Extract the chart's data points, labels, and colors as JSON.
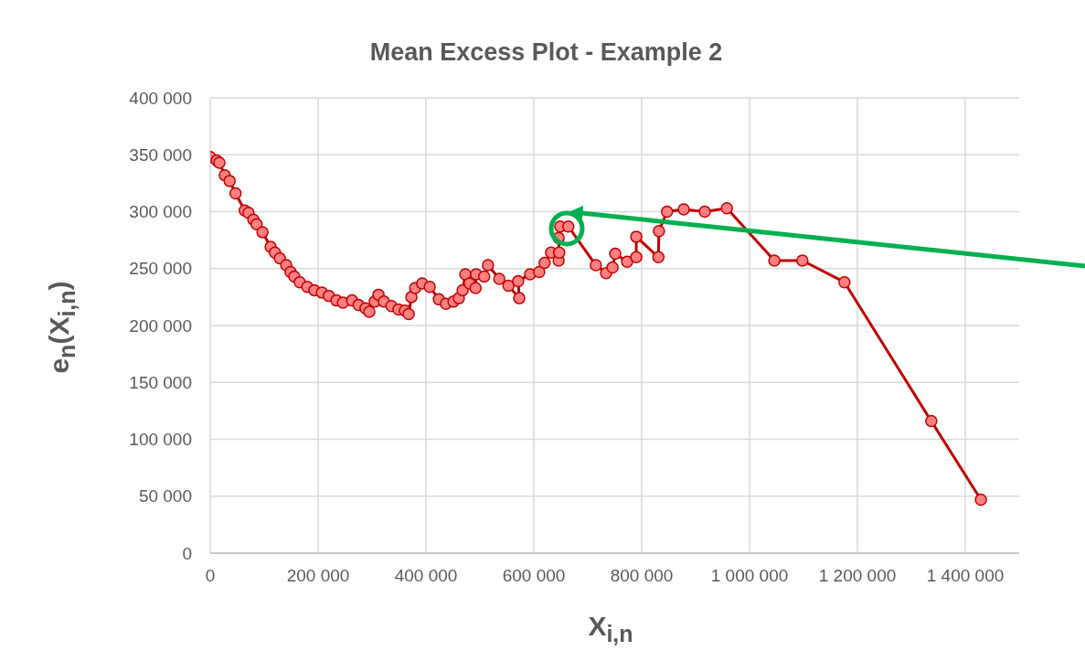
{
  "chart_data": {
    "type": "line",
    "title": "Mean Excess Plot - Example 2",
    "xlabel": "X$_{i,n}$",
    "ylabel": "e$_{n}$(X$_{i,n}$)",
    "x": [
      0,
      12000,
      17000,
      27000,
      36000,
      47000,
      64000,
      71000,
      80000,
      86000,
      97000,
      112000,
      120000,
      129000,
      141000,
      149000,
      156000,
      166000,
      180000,
      193000,
      207000,
      220000,
      234000,
      246000,
      263000,
      275000,
      288000,
      295000,
      305000,
      312000,
      322000,
      336000,
      349000,
      361000,
      368000,
      373000,
      380000,
      393000,
      407000,
      424000,
      437000,
      451000,
      461000,
      468000,
      473000,
      481000,
      492000,
      493000,
      508000,
      515000,
      536000,
      553000,
      573000,
      571000,
      593000,
      610000,
      620000,
      632000,
      646000,
      647000,
      646000,
      649000,
      664000,
      715000,
      734000,
      746000,
      751000,
      773000,
      790000,
      790000,
      831000,
      832000,
      847000,
      878000,
      917000,
      958000,
      1046000,
      1098000,
      1176000,
      1337000,
      1429000
    ],
    "series": [
      {
        "color": "#c00000",
        "values": [
          348000,
          345000,
          343000,
          332000,
          327000,
          316000,
          301000,
          299000,
          293000,
          289000,
          282000,
          269000,
          264000,
          259000,
          253000,
          247000,
          243000,
          238000,
          234000,
          231000,
          229000,
          226000,
          222000,
          220000,
          222000,
          218000,
          215000,
          212000,
          221000,
          227000,
          221000,
          217000,
          214000,
          213000,
          210000,
          225000,
          233000,
          237000,
          234000,
          223000,
          219000,
          221000,
          224000,
          231000,
          245000,
          237000,
          233000,
          245000,
          243000,
          253000,
          241000,
          235000,
          224000,
          239000,
          245000,
          247000,
          255000,
          264000,
          257000,
          264000,
          277000,
          287000,
          287000,
          253000,
          246000,
          251000,
          263000,
          256000,
          260000,
          278000,
          260000,
          283000,
          300000,
          302000,
          300000,
          303000,
          257000,
          257000,
          238000,
          116000,
          47000
        ]
      }
    ],
    "xlim": [
      0,
      1500000
    ],
    "ylim": [
      0,
      400000
    ],
    "xticks": [
      0,
      {
        "value": 200000,
        "label": "200 000"
      },
      {
        "value": 400000,
        "label": "400 000"
      },
      {
        "value": 600000,
        "label": "600 000"
      },
      {
        "value": 800000,
        "label": "800 000"
      },
      {
        "value": 1000000,
        "label": "1 000 000"
      },
      {
        "value": 1200000,
        "label": "1 200 000"
      },
      {
        "value": 1400000,
        "label": "1 400 000"
      }
    ],
    "yticks": [
      0,
      {
        "value": 50000,
        "label": "50 000"
      },
      {
        "value": 100000,
        "label": "100 000"
      },
      {
        "value": 150000,
        "label": "150 000"
      },
      {
        "value": 200000,
        "label": "200 000"
      },
      {
        "value": 250000,
        "label": "250 000"
      },
      {
        "value": 300000,
        "label": "300 000"
      },
      {
        "value": 350000,
        "label": "350 000"
      },
      {
        "value": 400000,
        "label": "400 000"
      }
    ],
    "grid": true,
    "marker": "circle",
    "line_style": "solid"
  }
}
